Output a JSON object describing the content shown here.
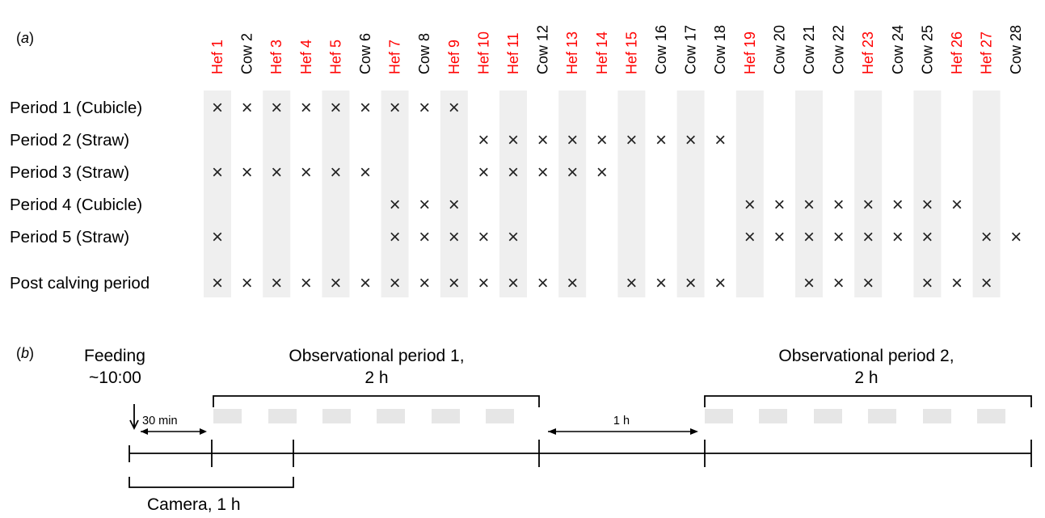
{
  "panel_a": {
    "label_a": "(",
    "label_letter": "a",
    "label_b": ")",
    "animals": [
      {
        "label": "Hef 1",
        "heifer": true
      },
      {
        "label": "Cow 2",
        "heifer": false
      },
      {
        "label": "Hef 3",
        "heifer": true
      },
      {
        "label": "Hef 4",
        "heifer": true
      },
      {
        "label": "Hef 5",
        "heifer": true
      },
      {
        "label": "Cow 6",
        "heifer": false
      },
      {
        "label": "Hef 7",
        "heifer": true
      },
      {
        "label": "Cow 8",
        "heifer": false
      },
      {
        "label": "Hef 9",
        "heifer": true
      },
      {
        "label": "Hef 10",
        "heifer": true
      },
      {
        "label": "Hef 11",
        "heifer": true
      },
      {
        "label": "Cow 12",
        "heifer": false
      },
      {
        "label": "Hef 13",
        "heifer": true
      },
      {
        "label": "Hef 14",
        "heifer": true
      },
      {
        "label": "Hef 15",
        "heifer": true
      },
      {
        "label": "Cow 16",
        "heifer": false
      },
      {
        "label": "Cow 17",
        "heifer": false
      },
      {
        "label": "Cow 18",
        "heifer": false
      },
      {
        "label": "Hef 19",
        "heifer": true
      },
      {
        "label": "Cow 20",
        "heifer": false
      },
      {
        "label": "Cow 21",
        "heifer": false
      },
      {
        "label": "Cow 22",
        "heifer": false
      },
      {
        "label": "Hef 23",
        "heifer": true
      },
      {
        "label": "Cow 24",
        "heifer": false
      },
      {
        "label": "Cow 25",
        "heifer": false
      },
      {
        "label": "Hef 26",
        "heifer": true
      },
      {
        "label": "Hef 27",
        "heifer": true
      },
      {
        "label": "Cow 28",
        "heifer": false
      }
    ],
    "shaded_animals": [
      1,
      3,
      5,
      7,
      9,
      11,
      13,
      15,
      17,
      19,
      21,
      23,
      25,
      27
    ],
    "mark_symbol": "×",
    "rows": [
      {
        "label": "Period 1 (Cubicle)",
        "marks": [
          1,
          2,
          3,
          4,
          5,
          6,
          7,
          8,
          9
        ]
      },
      {
        "label": "Period 2 (Straw)",
        "marks": [
          10,
          11,
          12,
          13,
          14,
          15,
          16,
          17,
          18
        ]
      },
      {
        "label": "Period 3 (Straw)",
        "marks": [
          1,
          2,
          3,
          4,
          5,
          6,
          10,
          11,
          12,
          13,
          14
        ]
      },
      {
        "label": "Period 4 (Cubicle)",
        "marks": [
          7,
          8,
          9,
          19,
          20,
          21,
          22,
          23,
          24,
          25,
          26
        ]
      },
      {
        "label": "Period 5 (Straw)",
        "marks": [
          1,
          7,
          8,
          9,
          10,
          11,
          19,
          20,
          21,
          22,
          23,
          24,
          25,
          27,
          28
        ]
      },
      {
        "label": "Post calving period",
        "marks": [
          1,
          2,
          3,
          4,
          5,
          6,
          7,
          8,
          9,
          10,
          11,
          12,
          13,
          15,
          16,
          17,
          18,
          21,
          22,
          23,
          25,
          26,
          27
        ]
      }
    ],
    "colors": {
      "heifer": "#ff0000",
      "cow": "#000000",
      "shade": "#efefef"
    }
  },
  "panel_b": {
    "label_a": "(",
    "label_letter": "b",
    "label_b": ")",
    "feeding_line1": "Feeding",
    "feeding_line2": "~10:00",
    "offset_label": "30 min",
    "obs1_line1": "Observational period 1,",
    "obs1_line2": "2 h",
    "gap_label": "1 h",
    "obs2_line1": "Observational period 2,",
    "obs2_line2": "2 h",
    "camera_label": "Camera, 1 h",
    "colors": {
      "segment": "#e6e6e6"
    }
  }
}
